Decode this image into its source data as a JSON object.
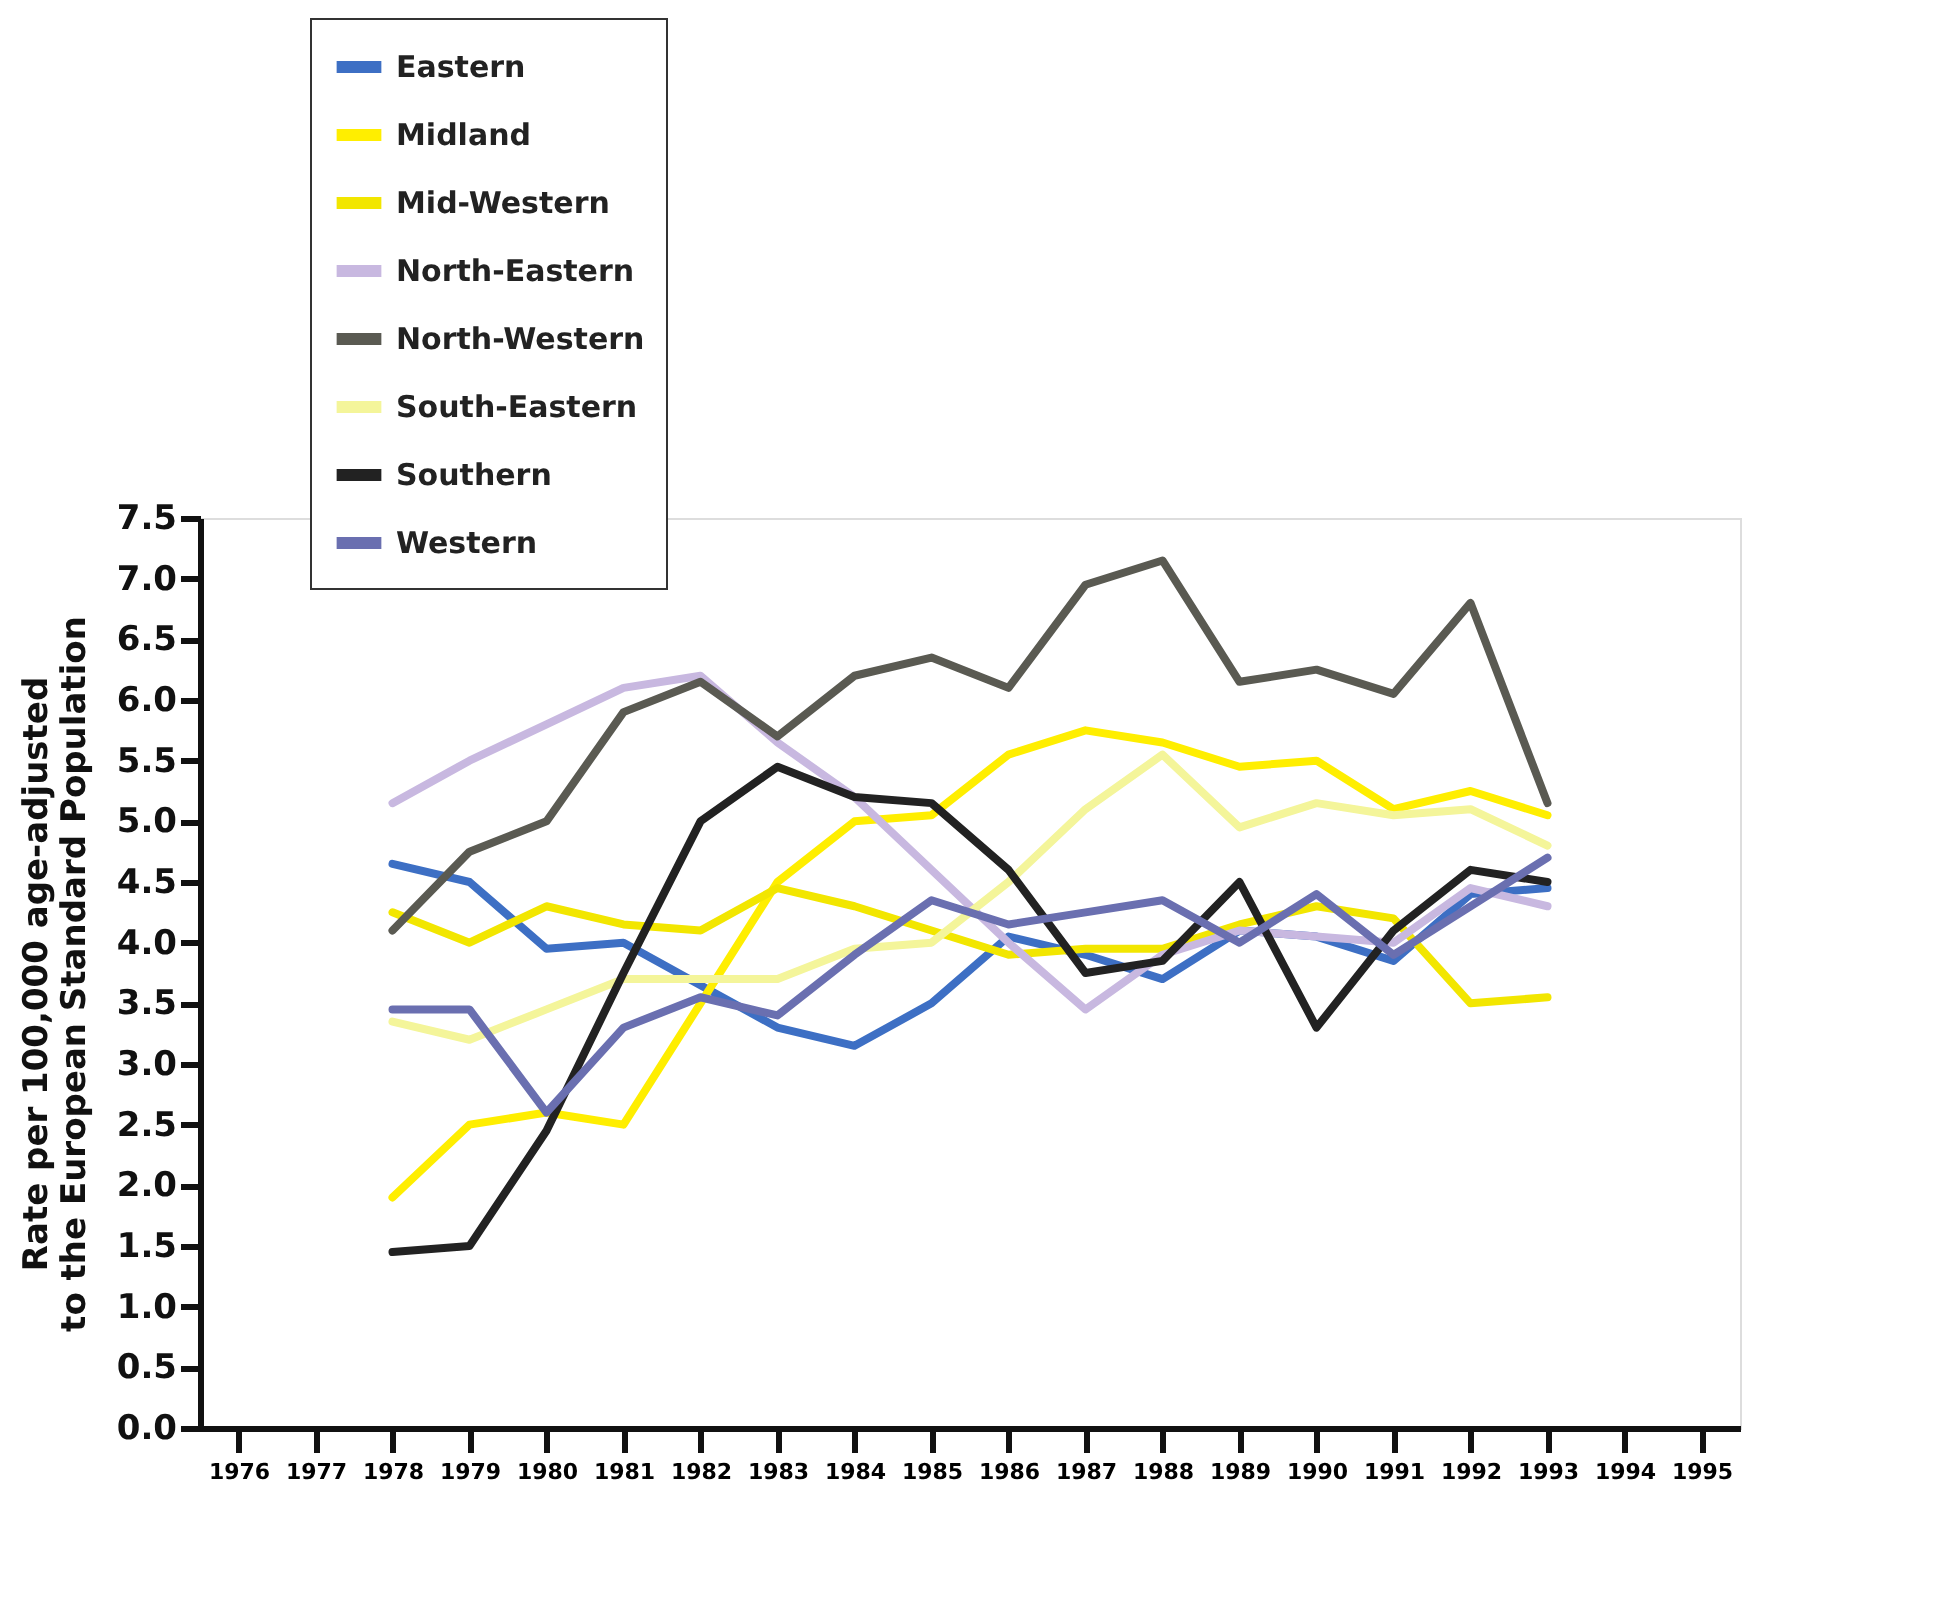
{
  "chart_data": {
    "type": "line",
    "ylabel": "Rate per 100,000 age-adjusted\nto the European Standard Population",
    "x": [
      1978,
      1979,
      1980,
      1981,
      1982,
      1983,
      1984,
      1985,
      1986,
      1987,
      1988,
      1989,
      1990,
      1991,
      1992,
      1993
    ],
    "xlim": [
      1975.5,
      1995.5
    ],
    "xticks": [
      1976,
      1977,
      1978,
      1979,
      1980,
      1981,
      1982,
      1983,
      1984,
      1985,
      1986,
      1987,
      1988,
      1989,
      1990,
      1991,
      1992,
      1993,
      1994,
      1995
    ],
    "ylim": [
      0,
      7.5
    ],
    "yticks": [
      {
        "value": 0,
        "label": "0.0"
      },
      0.5,
      {
        "value": 1,
        "label": "1.0"
      },
      1.5,
      {
        "value": 2,
        "label": "2.0"
      },
      2.5,
      {
        "value": 3,
        "label": "3.0"
      },
      3.5,
      {
        "value": 4,
        "label": "4.0"
      },
      4.5,
      {
        "value": 5,
        "label": "5.0"
      },
      5.5,
      {
        "value": 6,
        "label": "6.0"
      },
      6.5,
      {
        "value": 7,
        "label": "7.0"
      },
      7.5
    ],
    "grid": false,
    "legend": "top left",
    "marker": "none",
    "line_style": "solid",
    "series": [
      {
        "name": "Eastern",
        "color": "#3d6fc4",
        "values": [
          4.65,
          4.5,
          3.95,
          4.0,
          3.65,
          3.3,
          3.15,
          3.5,
          4.05,
          3.9,
          3.7,
          4.1,
          4.05,
          3.85,
          4.4,
          4.45
        ]
      },
      {
        "name": "Midland",
        "color": "#ffee00",
        "values": [
          1.9,
          2.5,
          2.6,
          2.5,
          3.5,
          4.5,
          5.0,
          5.05,
          5.55,
          5.75,
          5.65,
          5.45,
          5.5,
          5.1,
          5.25,
          5.05
        ]
      },
      {
        "name": "Mid-Western",
        "color": "#f2e600",
        "values": [
          4.25,
          4.0,
          4.3,
          4.15,
          4.1,
          4.45,
          4.3,
          4.1,
          3.9,
          3.95,
          3.95,
          4.15,
          4.3,
          4.2,
          3.5,
          3.55
        ]
      },
      {
        "name": "North-Eastern",
        "color": "#c8b8e0",
        "values": [
          5.15,
          5.5,
          5.8,
          6.1,
          6.2,
          5.65,
          5.2,
          4.6,
          4.0,
          3.45,
          3.9,
          4.1,
          4.05,
          4.0,
          4.45,
          4.3
        ]
      },
      {
        "name": "North-Western",
        "color": "#5a5a52",
        "values": [
          4.1,
          4.75,
          5.0,
          5.9,
          6.15,
          5.7,
          6.2,
          6.35,
          6.1,
          6.95,
          7.15,
          6.15,
          6.25,
          6.05,
          6.8,
          5.15
        ]
      },
      {
        "name": "South-Eastern",
        "color": "#f4f59a",
        "values": [
          3.35,
          3.2,
          3.45,
          3.7,
          3.7,
          3.7,
          3.95,
          4.0,
          4.5,
          5.1,
          5.55,
          4.95,
          5.15,
          5.05,
          5.1,
          4.8
        ]
      },
      {
        "name": "Southern",
        "color": "#222222",
        "values": [
          1.45,
          1.5,
          2.45,
          3.75,
          5.0,
          5.45,
          5.2,
          5.15,
          4.6,
          3.75,
          3.85,
          4.5,
          3.3,
          4.1,
          4.6,
          4.5
        ]
      },
      {
        "name": "Western",
        "color": "#6a6fb0",
        "values": [
          3.45,
          3.45,
          2.6,
          3.3,
          3.55,
          3.4,
          3.9,
          4.35,
          4.15,
          4.25,
          4.35,
          4.0,
          4.4,
          3.9,
          4.3,
          4.7
        ]
      }
    ]
  }
}
